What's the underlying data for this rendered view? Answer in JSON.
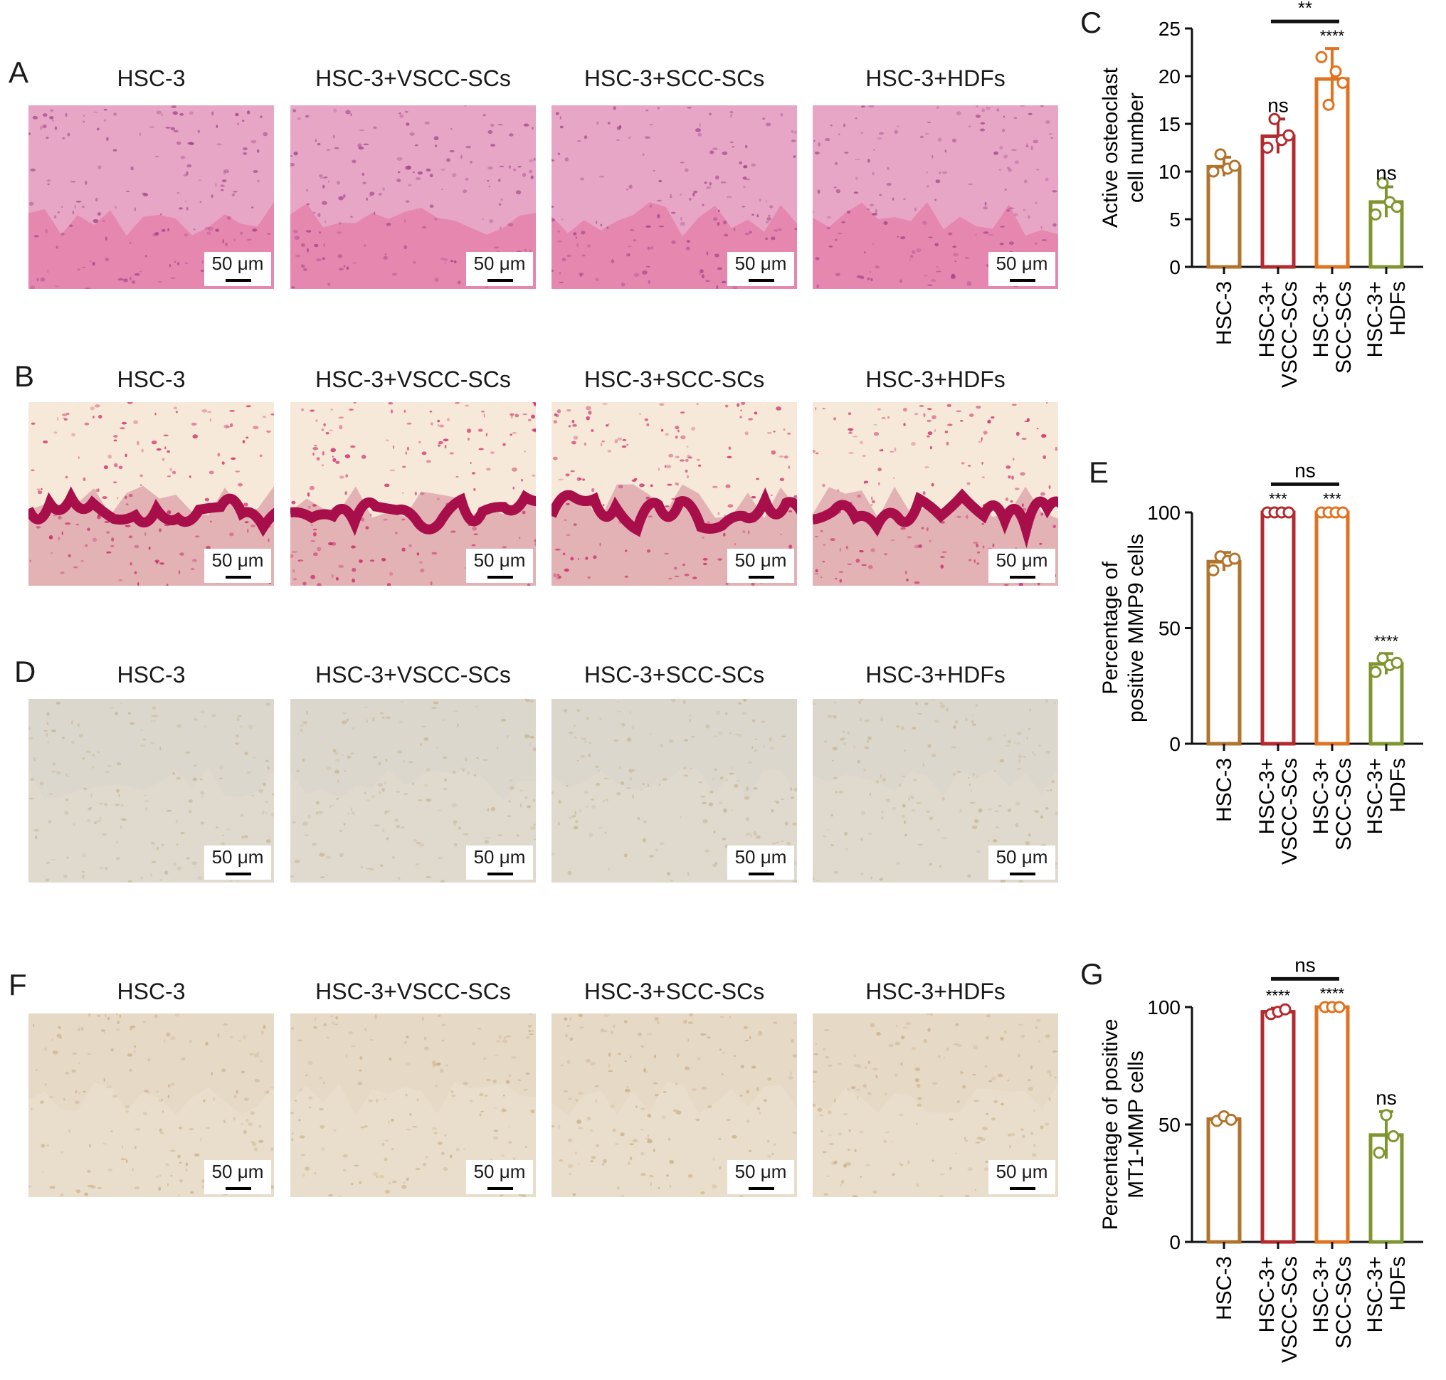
{
  "panels": {
    "A": {
      "label": "A",
      "titles": [
        "HSC-3",
        "HSC-3+VSCC-SCs",
        "HSC-3+SCC-SCs",
        "HSC-3+HDFs"
      ],
      "scale": "50 μm"
    },
    "B": {
      "label": "B",
      "titles": [
        "HSC-3",
        "HSC-3+VSCC-SCs",
        "HSC-3+SCC-SCs",
        "HSC-3+HDFs"
      ],
      "scale": "50 μm"
    },
    "D": {
      "label": "D",
      "titles": [
        "HSC-3",
        "HSC-3+VSCC-SCs",
        "HSC-3+SCC-SCs",
        "HSC-3+HDFs"
      ],
      "scale": "50 μm"
    },
    "F": {
      "label": "F",
      "titles": [
        "HSC-3",
        "HSC-3+VSCC-SCs",
        "HSC-3+SCC-SCs",
        "HSC-3+HDFs"
      ],
      "scale": "50 μm"
    }
  },
  "stain_colors": {
    "A": {
      "bg": "#e8a6c6",
      "fg": "#9b3e86",
      "band": "#e46e9f"
    },
    "B": {
      "bg": "#f6e9d9",
      "fg": "#c8175c",
      "band": "#a80f4a"
    },
    "D": {
      "bg": "#dcd7cd",
      "fg": "#c8b28e",
      "band": "#e2dbcf"
    },
    "F": {
      "bg": "#e6d9c6",
      "fg": "#c9ab82",
      "band": "#ebe1d2"
    }
  },
  "chart_data": [
    {
      "panel": "C",
      "type": "bar",
      "ylabel_lines": [
        "Active osteoclast",
        "cell number"
      ],
      "categories": [
        "HSC-3",
        "HSC-3+\nVSCC-SCs",
        "HSC-3+\nSCC-SCs",
        "HSC-3+\nHDFs"
      ],
      "values": [
        10.5,
        13.7,
        19.7,
        6.8
      ],
      "errors": [
        1.0,
        1.8,
        3.2,
        1.6
      ],
      "points": [
        [
          10,
          11.8,
          10.3,
          10.6
        ],
        [
          12.5,
          15.5,
          13.3,
          13.8
        ],
        [
          22,
          17,
          20.5,
          19.3
        ],
        [
          5.5,
          8.8,
          6.8,
          6.3
        ]
      ],
      "ylim": [
        0,
        25
      ],
      "yticks": [
        0,
        5,
        10,
        15,
        20,
        25
      ],
      "colors": [
        "#b1742c",
        "#b32a2f",
        "#e0731f",
        "#7f9630"
      ],
      "annotations": [
        "",
        "ns",
        "****",
        "ns"
      ],
      "bracket": {
        "from": 1,
        "to": 2,
        "label": "**"
      }
    },
    {
      "panel": "E",
      "type": "bar",
      "ylabel_lines": [
        "Percentage of",
        "positive MMP9 cells"
      ],
      "categories": [
        "HSC-3",
        "HSC-3+\nVSCC-SCs",
        "HSC-3+\nSCC-SCs",
        "HSC-3+\nHDFs"
      ],
      "values": [
        78.7,
        100,
        100,
        34.5
      ],
      "errors": [
        4.0,
        0.5,
        0.5,
        4.5
      ],
      "points": [
        [
          75,
          81,
          79,
          80
        ],
        [
          100,
          100,
          100,
          100
        ],
        [
          100,
          100,
          100,
          100
        ],
        [
          31,
          37,
          34,
          35
        ]
      ],
      "ylim": [
        0,
        100
      ],
      "yticks": [
        0,
        50,
        100
      ],
      "colors": [
        "#b1742c",
        "#b32a2f",
        "#e0731f",
        "#7f9630"
      ],
      "annotations": [
        "",
        "***",
        "***",
        "****"
      ],
      "bracket": {
        "from": 1,
        "to": 2,
        "label": "ns"
      }
    },
    {
      "panel": "G",
      "type": "bar",
      "ylabel_lines": [
        "Percentage of positive",
        "MT1-MMP cells"
      ],
      "categories": [
        "HSC-3",
        "HSC-3+\nVSCC-SCs",
        "HSC-3+\nSCC-SCs",
        "HSC-3+\nHDFs"
      ],
      "values": [
        52.3,
        98,
        100,
        45.5
      ],
      "errors": [
        1.2,
        1.5,
        0.5,
        10
      ],
      "points": [
        [
          51.5,
          53.5,
          52
        ],
        [
          97,
          98,
          99
        ],
        [
          100,
          100,
          100
        ],
        [
          38,
          54,
          45
        ]
      ],
      "ylim": [
        0,
        100
      ],
      "yticks": [
        0,
        50,
        100
      ],
      "colors": [
        "#b1742c",
        "#b32a2f",
        "#e0731f",
        "#7f9630"
      ],
      "annotations": [
        "",
        "****",
        "****",
        "ns"
      ],
      "bracket": {
        "from": 1,
        "to": 2,
        "label": "ns"
      }
    }
  ]
}
